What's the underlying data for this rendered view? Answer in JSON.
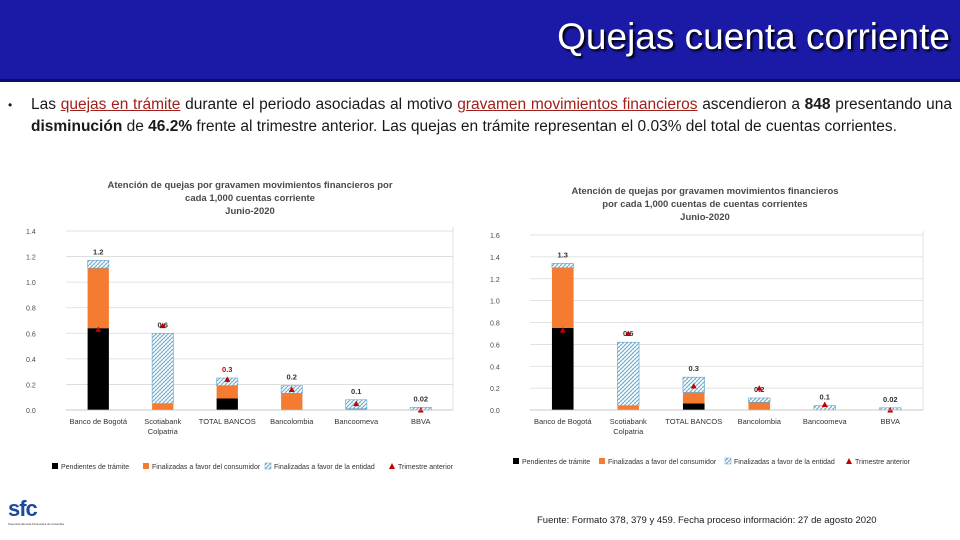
{
  "header": {
    "title": "Quejas cuenta corriente"
  },
  "paragraph": {
    "bullet": "•",
    "p1": "Las ",
    "p2": "quejas en trámite",
    "p3": " durante el periodo asociadas al motivo ",
    "p4": "gravamen movimientos financieros",
    "p5": " ascendieron a ",
    "p6": "848",
    "p7": " presentando una ",
    "p8": "disminución",
    "p9": " de ",
    "p10": "46.2%",
    "p11": " frente al trimestre anterior. Las quejas en trámite representan el 0.03% del total de cuentas corrientes."
  },
  "colors": {
    "pendientes": "#000000",
    "finalizadas_consumidor": "#f47b30",
    "finalizadas_entidad": "#5ba3c9",
    "trimestre_anterior": "#c00000"
  },
  "chart_data": [
    {
      "type": "bar",
      "stacked": true,
      "title_lines": [
        "Atención de quejas por gravamen movimientos financieros por",
        "cada 1,000 cuentas corriente",
        "Junio-2020"
      ],
      "categories": [
        "Banco de Bogotá",
        "Scotiabank Colpatria",
        "TOTAL BANCOS",
        "Bancolombia",
        "Bancoomeva",
        "BBVA"
      ],
      "category_lines": [
        [
          "Banco de Bogotá"
        ],
        [
          "Scotiabank",
          "Colpatria"
        ],
        [
          "TOTAL BANCOS"
        ],
        [
          "Bancolombia"
        ],
        [
          "Bancoomeva"
        ],
        [
          "BBVA"
        ]
      ],
      "series": [
        {
          "name": "Pendientes de trámite",
          "color_key": "pendientes",
          "values": [
            0.64,
            0.0,
            0.09,
            0.0,
            0.0,
            0.0
          ]
        },
        {
          "name": "Finalizadas a favor del consumidor",
          "color_key": "finalizadas_consumidor",
          "values": [
            0.47,
            0.05,
            0.1,
            0.13,
            0.01,
            0.0
          ]
        },
        {
          "name": "Finalizadas a favor de la entidad",
          "color_key": "finalizadas_entidad",
          "values": [
            0.06,
            0.55,
            0.06,
            0.06,
            0.07,
            0.02
          ]
        }
      ],
      "markers": {
        "name": "Trimestre anterior",
        "values": [
          0.63,
          0.66,
          0.24,
          0.16,
          0.05,
          0.0
        ]
      },
      "total_labels": [
        "1.2",
        "0.6",
        "0.3",
        "0.2",
        "0.1",
        "0.02"
      ],
      "total_label_highlight": [
        false,
        false,
        true,
        false,
        false,
        false
      ],
      "ylim": [
        0,
        1.4
      ],
      "yticks": [
        0,
        0.2,
        0.4,
        0.6,
        0.8,
        1.0,
        1.2,
        1.4
      ],
      "ytick_labels": [
        "0.0",
        "0.2",
        "0.4",
        "0.6",
        "0.8",
        "1.0",
        "1.2",
        "1.4"
      ],
      "legend": [
        "Pendientes de trámite",
        "Finalizadas a favor del consumidor",
        "Finalizadas a favor de la entidad",
        "Trimestre anterior"
      ]
    },
    {
      "type": "bar",
      "stacked": true,
      "title_lines": [
        "Atención de quejas por gravamen movimientos financieros",
        "por cada 1,000 cuentas de cuentas corrientes",
        "Junio-2020"
      ],
      "categories": [
        "Banco de Bogotá",
        "Scotiabank Colpatria",
        "TOTAL BANCOS",
        "Bancolombia",
        "Bancoomeva",
        "BBVA"
      ],
      "category_lines": [
        [
          "Banco de Bogotá"
        ],
        [
          "Scotiabank",
          "Colpatria"
        ],
        [
          "TOTAL BANCOS"
        ],
        [
          "Bancolombia"
        ],
        [
          "Bancoomeva"
        ],
        [
          "BBVA"
        ]
      ],
      "series": [
        {
          "name": "Pendientes de trámite",
          "color_key": "pendientes",
          "values": [
            0.75,
            0.0,
            0.06,
            0.0,
            0.0,
            0.0
          ]
        },
        {
          "name": "Finalizadas a favor del consumidor",
          "color_key": "finalizadas_consumidor",
          "values": [
            0.55,
            0.04,
            0.1,
            0.07,
            0.0,
            0.0
          ]
        },
        {
          "name": "Finalizadas a favor de la entidad",
          "color_key": "finalizadas_entidad",
          "values": [
            0.04,
            0.58,
            0.14,
            0.04,
            0.04,
            0.02
          ]
        }
      ],
      "markers": {
        "name": "Trimestre anterior",
        "values": [
          0.73,
          0.7,
          0.22,
          0.2,
          0.05,
          0.0
        ]
      },
      "total_labels": [
        "1.3",
        "0.6",
        "0.3",
        "0.2",
        "0.1",
        "0.02"
      ],
      "total_label_highlight": [
        false,
        false,
        false,
        false,
        false,
        false
      ],
      "ylim": [
        0,
        1.6
      ],
      "yticks": [
        0,
        0.2,
        0.4,
        0.6,
        0.8,
        1.0,
        1.2,
        1.4,
        1.6
      ],
      "ytick_labels": [
        "0.0",
        "0.2",
        "0.4",
        "0.6",
        "0.8",
        "1.0",
        "1.2",
        "1.4",
        "1.6"
      ],
      "legend": [
        "Pendientes de trámite",
        "Finalizadas a favor del consumidor",
        "Finalizadas a favor de la entidad",
        "Trimestre anterior"
      ]
    }
  ],
  "logo": {
    "text": "sfc",
    "subtitle": "Superintendencia Financiera de Colombia"
  },
  "source": "Fuente: Formato 378, 379 y 459. Fecha proceso información: 27 de agosto 2020"
}
